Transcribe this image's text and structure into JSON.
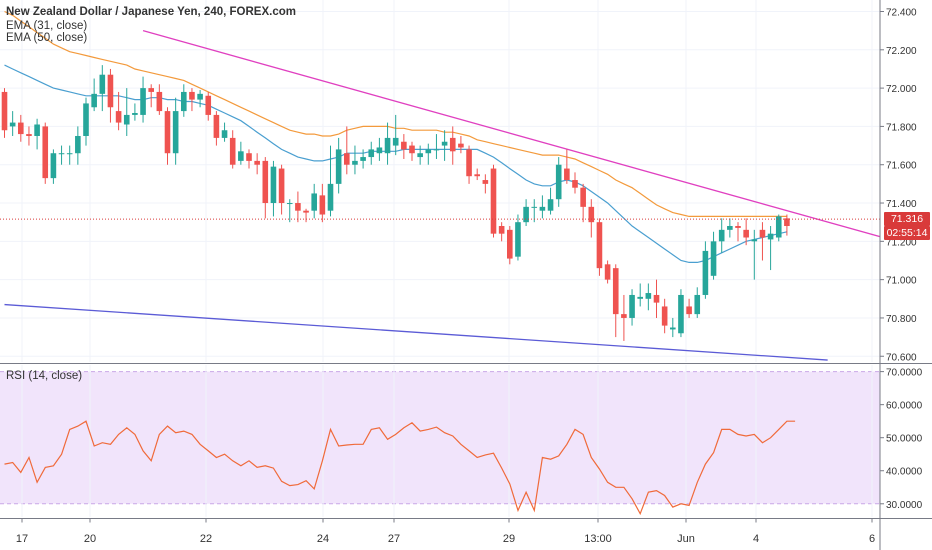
{
  "legend": {
    "title": "New Zealand Dollar / Japanese Yen, 240, FOREX.com",
    "ema31": "EMA (31, close)",
    "ema50": "EMA (50, close)",
    "rsi": "RSI (14, close)"
  },
  "last_price_label": "71.316",
  "countdown": "02:55:14",
  "colors": {
    "up": "#26a69a",
    "down": "#ef5350",
    "ema31": "#4a9fd0",
    "ema50": "#f39a3c",
    "trend_upper": "#e040c0",
    "trend_lower": "#5b5bd6",
    "rsi": "#f06a3a",
    "rsi_band": "#f1e4fb",
    "price_line": "#d93a3a"
  },
  "chart_data": [
    {
      "type": "candlestick",
      "title": "New Zealand Dollar / Japanese Yen, 240, FOREX.com",
      "ylim": [
        70.57,
        72.46
      ],
      "y_ticks": [
        "72.400",
        "72.200",
        "72.000",
        "71.800",
        "71.600",
        "71.400",
        "71.200",
        "71.000",
        "70.800",
        "70.600"
      ],
      "x_tick_labels": [
        "17",
        "20",
        "22",
        "24",
        "27",
        "29",
        "13:00",
        "Jun",
        "4",
        "6"
      ],
      "last_price": 71.316,
      "candles": [
        [
          71.98,
          71.78,
          72.0,
          71.74
        ],
        [
          71.8,
          71.82,
          71.88,
          71.75
        ],
        [
          71.82,
          71.76,
          71.86,
          71.72
        ],
        [
          71.76,
          71.75,
          71.8,
          71.7
        ],
        [
          71.75,
          71.81,
          71.84,
          71.68
        ],
        [
          71.8,
          71.53,
          71.82,
          71.5
        ],
        [
          71.53,
          71.66,
          71.68,
          71.5
        ],
        [
          71.66,
          71.66,
          71.7,
          71.6
        ],
        [
          71.66,
          71.66,
          71.7,
          71.6
        ],
        [
          71.66,
          71.75,
          71.8,
          71.6
        ],
        [
          71.75,
          71.92,
          71.95,
          71.7
        ],
        [
          71.9,
          71.97,
          72.05,
          71.88
        ],
        [
          71.97,
          72.07,
          72.12,
          71.88
        ],
        [
          72.07,
          71.9,
          72.1,
          71.82
        ],
        [
          71.88,
          71.82,
          71.98,
          71.78
        ],
        [
          71.81,
          71.86,
          72.0,
          71.75
        ],
        [
          71.86,
          71.87,
          71.92,
          71.83
        ],
        [
          71.86,
          72.0,
          72.06,
          71.82
        ],
        [
          72.0,
          71.98,
          72.02,
          71.9
        ],
        [
          71.98,
          71.88,
          72.02,
          71.86
        ],
        [
          71.88,
          71.66,
          71.9,
          71.6
        ],
        [
          71.66,
          71.88,
          71.95,
          71.6
        ],
        [
          71.88,
          71.98,
          72.02,
          71.85
        ],
        [
          71.98,
          71.94,
          72.0,
          71.88
        ],
        [
          71.94,
          71.97,
          71.99,
          71.9
        ],
        [
          71.96,
          71.86,
          71.98,
          71.83
        ],
        [
          71.86,
          71.74,
          71.88,
          71.7
        ],
        [
          71.74,
          71.78,
          71.82,
          71.72
        ],
        [
          71.74,
          71.6,
          71.78,
          71.58
        ],
        [
          71.62,
          71.67,
          71.72,
          71.6
        ],
        [
          71.66,
          71.62,
          71.68,
          71.58
        ],
        [
          71.62,
          71.6,
          71.66,
          71.55
        ],
        [
          71.62,
          71.4,
          71.64,
          71.32
        ],
        [
          71.4,
          71.59,
          71.62,
          71.33
        ],
        [
          71.58,
          71.4,
          71.6,
          71.34
        ],
        [
          71.4,
          71.4,
          71.42,
          71.3
        ],
        [
          71.4,
          71.36,
          71.46,
          71.3
        ],
        [
          71.36,
          71.35,
          71.37,
          71.3
        ],
        [
          71.36,
          71.45,
          71.5,
          71.32
        ],
        [
          71.44,
          71.34,
          71.5,
          71.3
        ],
        [
          71.36,
          71.5,
          71.7,
          71.33
        ],
        [
          71.5,
          71.68,
          71.74,
          71.45
        ],
        [
          71.66,
          71.6,
          71.8,
          71.55
        ],
        [
          71.6,
          71.62,
          71.7,
          71.55
        ],
        [
          71.62,
          71.64,
          71.68,
          71.58
        ],
        [
          71.64,
          71.68,
          71.72,
          71.6
        ],
        [
          71.66,
          71.69,
          71.74,
          71.62
        ],
        [
          71.66,
          71.74,
          71.82,
          71.6
        ],
        [
          71.7,
          71.74,
          71.86,
          71.65
        ],
        [
          71.72,
          71.68,
          71.76,
          71.63
        ],
        [
          71.7,
          71.66,
          71.72,
          71.62
        ],
        [
          71.64,
          71.66,
          71.7,
          71.6
        ],
        [
          71.66,
          71.68,
          71.71,
          71.6
        ],
        [
          71.68,
          71.68,
          71.76,
          71.63
        ],
        [
          71.7,
          71.72,
          71.78,
          71.62
        ],
        [
          71.74,
          71.67,
          71.8,
          71.6
        ],
        [
          71.71,
          71.69,
          71.75,
          71.66
        ],
        [
          71.68,
          71.54,
          71.7,
          71.5
        ],
        [
          71.55,
          71.54,
          71.58,
          71.52
        ],
        [
          71.52,
          71.5,
          71.55,
          71.45
        ],
        [
          71.58,
          71.24,
          71.6,
          71.22
        ],
        [
          71.28,
          71.24,
          71.3,
          71.2
        ],
        [
          71.26,
          71.11,
          71.28,
          71.08
        ],
        [
          71.12,
          71.3,
          71.34,
          71.1
        ],
        [
          71.3,
          71.38,
          71.42,
          71.28
        ],
        [
          71.38,
          71.38,
          71.42,
          71.3
        ],
        [
          71.36,
          71.38,
          71.44,
          71.32
        ],
        [
          71.36,
          71.42,
          71.48,
          71.34
        ],
        [
          71.42,
          71.6,
          71.64,
          71.38
        ],
        [
          71.58,
          71.52,
          71.68,
          71.5
        ],
        [
          71.52,
          71.48,
          71.56,
          71.45
        ],
        [
          71.48,
          71.38,
          71.5,
          71.3
        ],
        [
          71.38,
          71.3,
          71.42,
          71.22
        ],
        [
          71.3,
          71.06,
          71.32,
          71.02
        ],
        [
          71.08,
          71.0,
          71.1,
          70.98
        ],
        [
          71.06,
          70.82,
          71.08,
          70.7
        ],
        [
          70.82,
          70.8,
          70.92,
          70.68
        ],
        [
          70.8,
          70.92,
          70.95,
          70.76
        ],
        [
          70.9,
          70.91,
          70.98,
          70.86
        ],
        [
          70.9,
          70.93,
          70.98,
          70.84
        ],
        [
          70.92,
          70.88,
          71.0,
          70.8
        ],
        [
          70.86,
          70.76,
          70.9,
          70.72
        ],
        [
          70.74,
          70.75,
          70.8,
          70.7
        ],
        [
          70.72,
          70.92,
          70.95,
          70.7
        ],
        [
          70.86,
          70.82,
          70.9,
          70.8
        ],
        [
          70.82,
          70.92,
          70.96,
          70.8
        ],
        [
          70.92,
          71.15,
          71.2,
          70.9
        ],
        [
          71.02,
          71.2,
          71.25,
          71.0
        ],
        [
          71.2,
          71.26,
          71.32,
          71.14
        ],
        [
          71.26,
          71.28,
          71.32,
          71.22
        ],
        [
          71.28,
          71.27,
          71.3,
          71.2
        ],
        [
          71.26,
          71.22,
          71.32,
          71.18
        ],
        [
          71.2,
          71.21,
          71.26,
          71.0
        ],
        [
          71.26,
          71.22,
          71.3,
          71.1
        ],
        [
          71.21,
          71.24,
          71.28,
          71.05
        ],
        [
          71.22,
          71.33,
          71.34,
          71.2
        ],
        [
          71.32,
          71.28,
          71.34,
          71.23
        ]
      ],
      "ema31": [
        72.12,
        72.1,
        72.08,
        72.06,
        72.04,
        72.02,
        72.0,
        71.99,
        71.98,
        71.97,
        71.96,
        71.96,
        71.96,
        71.96,
        71.96,
        71.95,
        71.94,
        71.94,
        71.95,
        71.95,
        71.94,
        71.94,
        71.93,
        71.93,
        71.92,
        71.91,
        71.89,
        71.87,
        71.85,
        71.83,
        71.8,
        71.77,
        71.74,
        71.71,
        71.68,
        71.66,
        71.64,
        71.63,
        71.62,
        71.62,
        71.63,
        71.64,
        71.66,
        71.66,
        71.66,
        71.67,
        71.67,
        71.67,
        71.67,
        71.68,
        71.68,
        71.68,
        71.68,
        71.68,
        71.68,
        71.68,
        71.68,
        71.68,
        71.68,
        71.66,
        71.64,
        71.61,
        71.58,
        71.55,
        71.52,
        71.5,
        71.49,
        71.49,
        71.51,
        71.52,
        71.51,
        71.49,
        71.46,
        71.43,
        71.4,
        71.36,
        71.32,
        71.28,
        71.25,
        71.22,
        71.19,
        71.16,
        71.13,
        71.1,
        71.09,
        71.09,
        71.1,
        71.12,
        71.14,
        71.16,
        71.18,
        71.2,
        71.21,
        71.22,
        71.23,
        71.24,
        71.25
      ],
      "ema50": [
        72.4,
        72.38,
        72.35,
        72.32,
        72.29,
        72.26,
        72.23,
        72.21,
        72.19,
        72.18,
        72.17,
        72.16,
        72.15,
        72.14,
        72.13,
        72.12,
        72.1,
        72.09,
        72.08,
        72.07,
        72.06,
        72.05,
        72.04,
        72.02,
        72.0,
        71.98,
        71.96,
        71.94,
        71.92,
        71.9,
        71.88,
        71.86,
        71.84,
        71.82,
        71.8,
        71.78,
        71.77,
        71.76,
        71.76,
        71.75,
        71.75,
        71.76,
        71.78,
        71.79,
        71.8,
        71.8,
        71.8,
        71.8,
        71.79,
        71.79,
        71.78,
        71.78,
        71.78,
        71.78,
        71.77,
        71.77,
        71.76,
        71.75,
        71.73,
        71.72,
        71.71,
        71.7,
        71.69,
        71.68,
        71.67,
        71.66,
        71.65,
        71.65,
        71.65,
        71.64,
        71.63,
        71.61,
        71.59,
        71.57,
        71.55,
        71.52,
        71.5,
        71.48,
        71.45,
        71.42,
        71.39,
        71.37,
        71.35,
        71.34,
        71.33,
        71.33,
        71.33,
        71.33,
        71.33,
        71.33,
        71.33,
        71.33,
        71.33,
        71.33,
        71.33,
        71.33,
        71.33
      ],
      "trendlines": [
        {
          "name": "upper",
          "start": [
            72.3,
            17
          ],
          "end": [
            71.17,
            112
          ]
        },
        {
          "name": "lower",
          "start": [
            70.87,
            0
          ],
          "end": [
            70.58,
            101
          ]
        }
      ]
    },
    {
      "type": "line",
      "title": "RSI (14, close)",
      "ylim": [
        26,
        72
      ],
      "y_ticks": [
        "70.0000",
        "60.0000",
        "50.0000",
        "40.0000",
        "30.0000"
      ],
      "band": [
        30,
        70
      ],
      "rsi": [
        42,
        42.5,
        39.5,
        44,
        36.5,
        41,
        41.5,
        45,
        52.5,
        53.5,
        55,
        47.5,
        48.5,
        48,
        51,
        53,
        51,
        46,
        43,
        51,
        53.5,
        51.5,
        52,
        51,
        48,
        46,
        44,
        45,
        43,
        41.5,
        43,
        41,
        41.5,
        40.8,
        36.8,
        35.5,
        35.8,
        37,
        34.5,
        43,
        52.5,
        47.5,
        47.8,
        48,
        48,
        52.5,
        53,
        49.5,
        51,
        53,
        54.5,
        52,
        52.5,
        53.2,
        51.5,
        50.5,
        48,
        46,
        44,
        44.8,
        45.3,
        40.8,
        36,
        28,
        33.5,
        28,
        44,
        43.5,
        44.5,
        48,
        52.5,
        51,
        44,
        40.5,
        36.5,
        35,
        35,
        31.5,
        27,
        33.5,
        34,
        32.5,
        29,
        30,
        29.5,
        36.5,
        42,
        45.5,
        52.5,
        52.5,
        51,
        50.5,
        51,
        48.5,
        50,
        52.5,
        55,
        55
      ]
    }
  ]
}
